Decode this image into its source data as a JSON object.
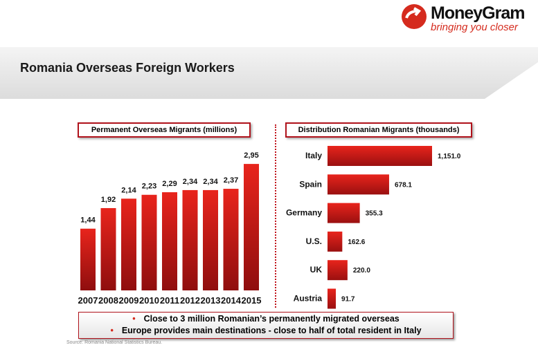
{
  "header": {
    "title": "Romania Overseas Foreign Workers"
  },
  "logo": {
    "name": "MoneyGram",
    "tagline": "bringing you closer",
    "icon": "moneygram-arrow-icon"
  },
  "colors": {
    "accent": "#d52b1e",
    "bar_top": "#e31b1b",
    "bar_bottom": "#8a0d0d"
  },
  "chart_data": [
    {
      "type": "bar",
      "title": "Permanent Overseas Migrants (millions)",
      "categories": [
        "2007",
        "2008",
        "2009",
        "2010",
        "2011",
        "2012",
        "2013",
        "2014",
        "2015"
      ],
      "values": [
        1.44,
        1.92,
        2.14,
        2.23,
        2.29,
        2.34,
        2.34,
        2.37,
        2.95
      ],
      "labels": [
        "1,44",
        "1,92",
        "2,14",
        "2,23",
        "2,29",
        "2,34",
        "2,34",
        "2,37",
        "2,95"
      ],
      "ylim": [
        0,
        3
      ]
    },
    {
      "type": "bar",
      "orientation": "horizontal",
      "title": "Distribution Romanian Migrants (thousands)",
      "categories": [
        "Italy",
        "Spain",
        "Germany",
        "U.S.",
        "UK",
        "Austria"
      ],
      "values": [
        1151.0,
        678.1,
        355.3,
        162.6,
        220.0,
        91.7
      ],
      "labels": [
        "1,151.0",
        "678.1",
        "355.3",
        "162.6",
        "220.0",
        "91.7"
      ]
    }
  ],
  "notes": [
    "Close to 3 million Romanian’s permanently migrated overseas",
    "Europe provides main destinations - close to half of total resident in Italy"
  ],
  "bullet": "•",
  "source": "Source:  Romania  National Statistics Bureau."
}
